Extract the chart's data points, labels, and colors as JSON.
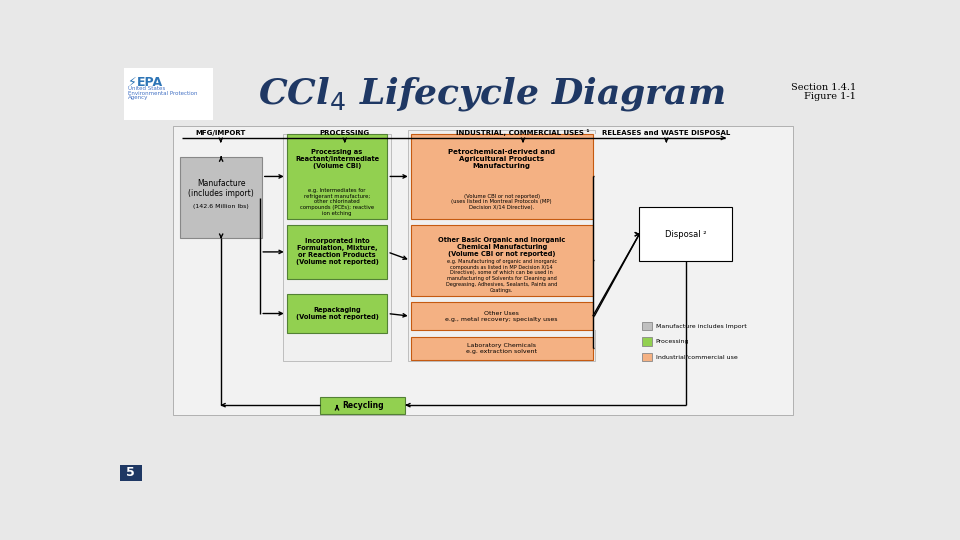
{
  "title_color": "#1f3864",
  "bg_color": "#e8e8e8",
  "diagram_bg": "#f5f5f5",
  "section_line1": "Section 1.4.1",
  "section_line2": "Figure 1-1",
  "col_headers": [
    "MFG/IMPORT",
    "PROCESSING",
    "INDUSTRIAL, COMMERCIAL USES ¹",
    "RELEASES and WASTE DISPOSAL"
  ],
  "manufacture_box": {
    "text1": "Manufacture\n(includes import)",
    "text2": "(142.6 Million lbs)",
    "color": "#c0c0c0",
    "border": "#888888"
  },
  "processing_boxes": [
    {
      "bold": "Processing as\nReactant/Intermediate\n(Volume CBI)",
      "normal": "e.g. Intermediates for\nrefrigerant manufacture;\nother chlorinated\ncompounds (PCEs); reactive\nion etching",
      "color": "#92d050",
      "border": "#538135"
    },
    {
      "bold": "Incorporated into\nFormulation, Mixture,\nor Reaction Products\n(Volume not reported)",
      "normal": "",
      "color": "#92d050",
      "border": "#538135"
    },
    {
      "bold": "Repackaging\n(Volume not reported)",
      "normal": "",
      "color": "#92d050",
      "border": "#538135"
    }
  ],
  "industrial_boxes": [
    {
      "bold": "Petrochemical-derived and\nAgricultural Products\nManufacturing",
      "normal": "(Volume CBI or not reported)\n(uses listed in Montreal Protocols (MP)\nDecision X/14 Directive).",
      "color": "#f4b183",
      "border": "#c55a11"
    },
    {
      "bold": "Other Basic Organic and Inorganic\nChemical Manufacturing\n(Volume CBI or not reported)",
      "normal": "e.g. Manufacturing of organic and inorganic\ncompounds as listed in MP Decision X/14\nDirective), some of which can be used in\nmanufacturing of Solvents for Cleaning and\nDegreasing, Adhesives, Sealants, Paints and\nCoatings.",
      "color": "#f4b183",
      "border": "#c55a11"
    },
    {
      "bold": "Other Uses",
      "normal": "e.g., metal recovery; specialty uses",
      "color": "#f4b183",
      "border": "#c55a11"
    },
    {
      "bold": "Laboratory Chemicals",
      "normal": "e.g. extraction solvent",
      "color": "#f4b183",
      "border": "#c55a11"
    }
  ],
  "disposal_label": "Disposal ²",
  "recycling_label": "Recycling",
  "recycling_color": "#92d050",
  "recycling_border": "#538135",
  "legend_items": [
    {
      "label": "Manufacture includes Import",
      "color": "#c0c0c0"
    },
    {
      "label": "Processing",
      "color": "#92d050"
    },
    {
      "label": "Industrial/commercial use",
      "color": "#f4b183"
    }
  ],
  "page_number": "5",
  "page_color": "#1f3864"
}
